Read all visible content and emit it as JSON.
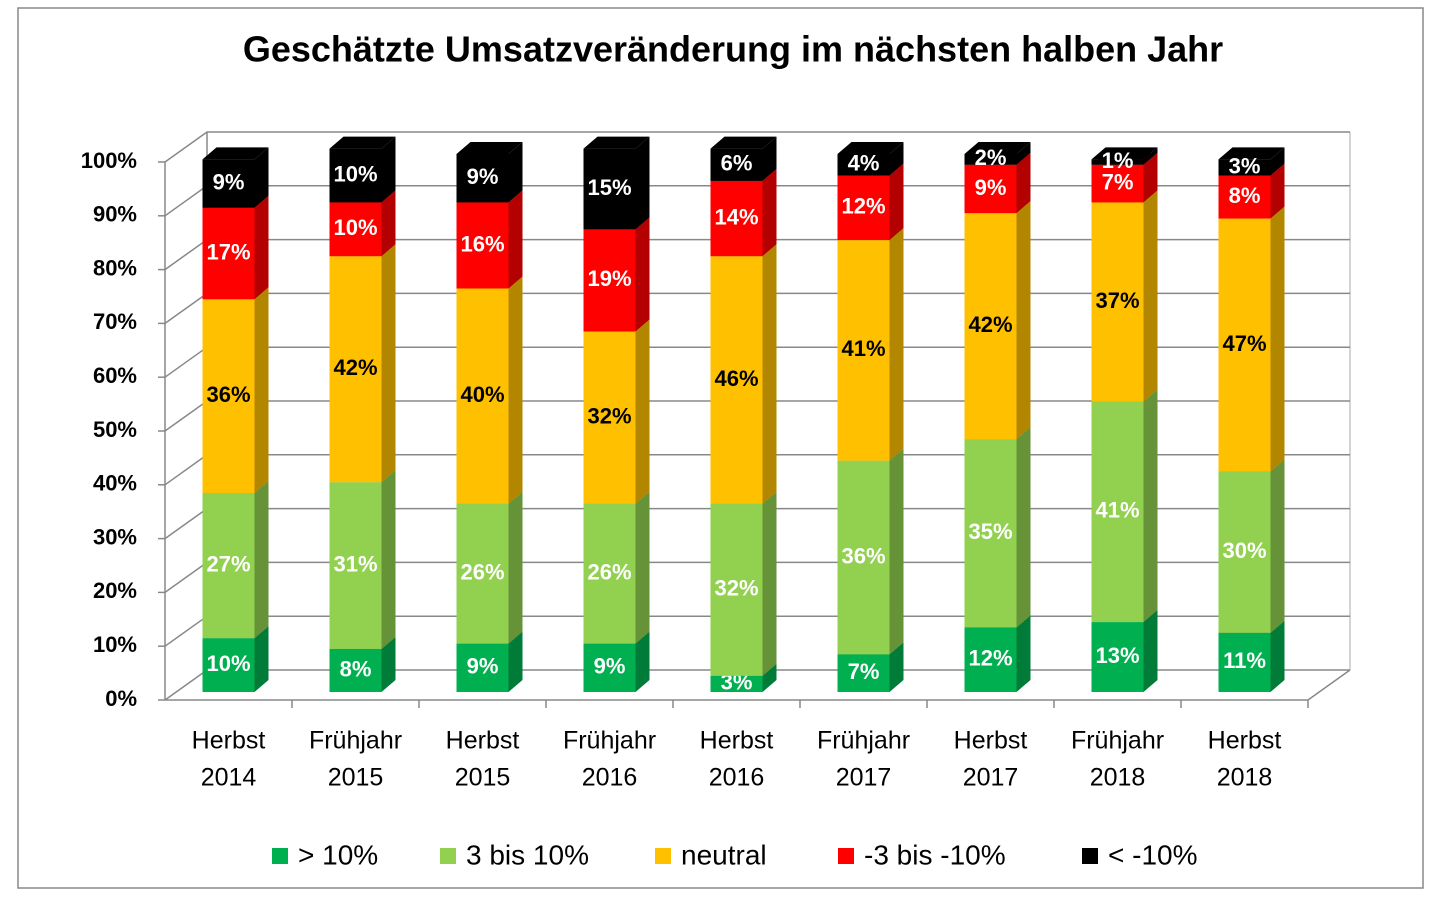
{
  "chart_data": {
    "type": "bar3d_stacked",
    "title": "Geschätzte Umsatzveränderung im nächsten halben Jahr",
    "categories": [
      [
        "Herbst",
        "2014"
      ],
      [
        "Frühjahr",
        "2015"
      ],
      [
        "Herbst",
        "2015"
      ],
      [
        "Frühjahr",
        "2016"
      ],
      [
        "Herbst",
        "2016"
      ],
      [
        "Frühjahr",
        "2017"
      ],
      [
        "Herbst",
        "2017"
      ],
      [
        "Frühjahr",
        "2018"
      ],
      [
        "Herbst",
        "2018"
      ]
    ],
    "series": [
      {
        "name": "> 10%",
        "color": "#00b050",
        "label_color": "#ffffff",
        "values": [
          10,
          8,
          9,
          9,
          3,
          7,
          12,
          13,
          11
        ],
        "value_labels": [
          "10%",
          "8%",
          "9%",
          "9%",
          "3%",
          "7%",
          "12%",
          "13%",
          "11%"
        ]
      },
      {
        "name": "3 bis 10%",
        "color": "#92d050",
        "label_color": "#ffffff",
        "values": [
          27,
          31,
          26,
          26,
          32,
          36,
          35,
          41,
          30
        ],
        "value_labels": [
          "27%",
          "31%",
          "26%",
          "26%",
          "32%",
          "36%",
          "35%",
          "41%",
          "30%"
        ]
      },
      {
        "name": "neutral",
        "color": "#ffc000",
        "label_color": "#000000",
        "values": [
          36,
          42,
          40,
          32,
          46,
          41,
          42,
          37,
          47
        ],
        "value_labels": [
          "36%",
          "42%",
          "40%",
          "32%",
          "46%",
          "41%",
          "42%",
          "37%",
          "47%"
        ]
      },
      {
        "name": "-3 bis -10%",
        "color": "#ff0000",
        "label_color": "#ffffff",
        "values": [
          17,
          10,
          16,
          19,
          14,
          12,
          9,
          7,
          8
        ],
        "value_labels": [
          "17%",
          "10%",
          "16%",
          "19%",
          "14%",
          "12%",
          "9%",
          "7%",
          "8%"
        ]
      },
      {
        "name": "< -10%",
        "color": "#000000",
        "label_color": "#ffffff",
        "values": [
          9,
          10,
          9,
          15,
          6,
          4,
          2,
          1,
          3
        ],
        "value_labels": [
          "9%",
          "10%",
          "9%",
          "15%",
          "6%",
          "4%",
          "2%",
          "1%",
          "3%"
        ]
      }
    ],
    "ylim": [
      0,
      100
    ],
    "yticks": [
      {
        "value": 0,
        "label": "0%"
      },
      {
        "value": 10,
        "label": "10%"
      },
      {
        "value": 20,
        "label": "20%"
      },
      {
        "value": 30,
        "label": "30%"
      },
      {
        "value": 40,
        "label": "40%"
      },
      {
        "value": 50,
        "label": "50%"
      },
      {
        "value": 60,
        "label": "60%"
      },
      {
        "value": 70,
        "label": "70%"
      },
      {
        "value": 80,
        "label": "80%"
      },
      {
        "value": 90,
        "label": "90%"
      },
      {
        "value": 100,
        "label": "100%"
      }
    ],
    "grid": true,
    "legend": "bottom"
  }
}
